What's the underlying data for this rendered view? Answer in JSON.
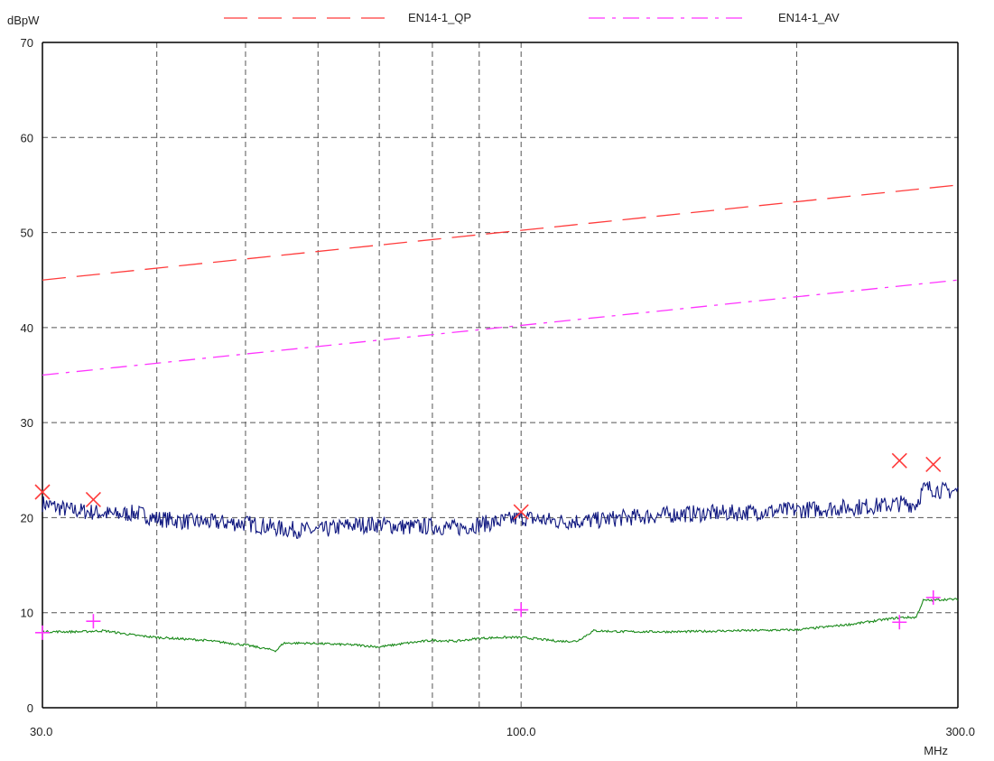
{
  "chart_data": {
    "type": "line",
    "title": "",
    "ylabel": "dBpW",
    "xlabel": "MHz",
    "xscale": "log",
    "xlim": [
      30,
      300
    ],
    "ylim": [
      0,
      70
    ],
    "grid": true,
    "legend_position": "top",
    "x_tick_labels": [
      "30.0",
      "100.0",
      "300.0"
    ],
    "y_tick_labels": [
      "0",
      "10",
      "20",
      "30",
      "40",
      "50",
      "60",
      "70"
    ],
    "limit_lines": [
      {
        "name": "EN14-1_QP",
        "color": "#ff3b3b",
        "style": "long-dash",
        "x": [
          30,
          300
        ],
        "y": [
          45,
          55
        ]
      },
      {
        "name": "EN14-1_AV",
        "color": "#ff33ff",
        "style": "dash-dot",
        "x": [
          30,
          300
        ],
        "y": [
          35,
          45
        ]
      }
    ],
    "series": [
      {
        "color": "#101880",
        "x": [
          30,
          32,
          34,
          36,
          38,
          40,
          43,
          46,
          50,
          55,
          60,
          65,
          70,
          75,
          80,
          85,
          90,
          95,
          100,
          110,
          120,
          130,
          140,
          150,
          170,
          190,
          210,
          230,
          250,
          260,
          270,
          275,
          280,
          290,
          300
        ],
        "y": [
          21.5,
          20.8,
          20.6,
          20.3,
          20.5,
          19.9,
          19.6,
          19.5,
          19.4,
          18.8,
          18.6,
          19.2,
          19.3,
          19.0,
          19.1,
          18.9,
          19.3,
          19.6,
          20.0,
          19.6,
          19.7,
          20.0,
          20.2,
          20.4,
          20.5,
          20.7,
          20.9,
          21.1,
          21.3,
          21.5,
          21.4,
          23.0,
          23.1,
          22.8,
          22.8
        ]
      },
      {
        "color": "#1a8a1a",
        "x": [
          30,
          33,
          35,
          38,
          40,
          45,
          50,
          54,
          55,
          58,
          62,
          66,
          70,
          75,
          80,
          85,
          90,
          95,
          100,
          105,
          110,
          115,
          120,
          130,
          150,
          170,
          200,
          230,
          250,
          260,
          270,
          275,
          280,
          290,
          300
        ],
        "y": [
          8.0,
          8.0,
          8.1,
          7.6,
          7.4,
          7.1,
          6.6,
          6.0,
          6.8,
          6.8,
          6.7,
          6.6,
          6.4,
          6.8,
          7.1,
          7.0,
          7.3,
          7.4,
          7.4,
          7.2,
          7.0,
          7.0,
          8.1,
          8.0,
          8.0,
          8.1,
          8.2,
          8.8,
          9.3,
          9.5,
          9.5,
          11.3,
          11.3,
          11.4,
          11.4
        ]
      }
    ],
    "markers": [
      {
        "shape": "x",
        "color": "#ff3b3b",
        "points": [
          [
            30,
            22.7
          ],
          [
            34.1,
            21.9
          ],
          [
            100,
            20.6
          ],
          [
            259,
            26.0
          ],
          [
            282,
            25.6
          ]
        ]
      },
      {
        "shape": "+",
        "color": "#ff33ff",
        "points": [
          [
            30,
            7.9
          ],
          [
            34.1,
            9.1
          ],
          [
            100,
            10.3
          ],
          [
            259,
            9.0
          ],
          [
            282,
            11.6
          ]
        ]
      }
    ]
  }
}
